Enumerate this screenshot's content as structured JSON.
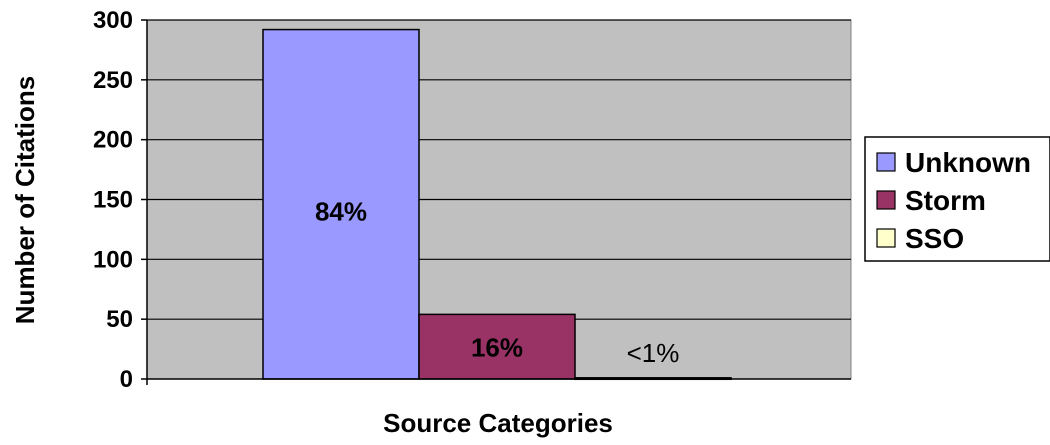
{
  "chart_data": {
    "type": "bar",
    "title": "",
    "xlabel": "Source Categories",
    "ylabel": "Number of Citations",
    "ylim": [
      0,
      300
    ],
    "yticks": [
      0,
      50,
      100,
      150,
      200,
      250,
      300
    ],
    "grid": true,
    "legend_position": "right",
    "series": [
      {
        "name": "Unknown",
        "value": 292,
        "label": "84%",
        "color": "#9999ff"
      },
      {
        "name": "Storm",
        "value": 54,
        "label": "16%",
        "color": "#993366"
      },
      {
        "name": "SSO",
        "value": 1,
        "label": "<1%",
        "color": "#ffffcc"
      }
    ],
    "plot_background": "#c0c0c0"
  }
}
